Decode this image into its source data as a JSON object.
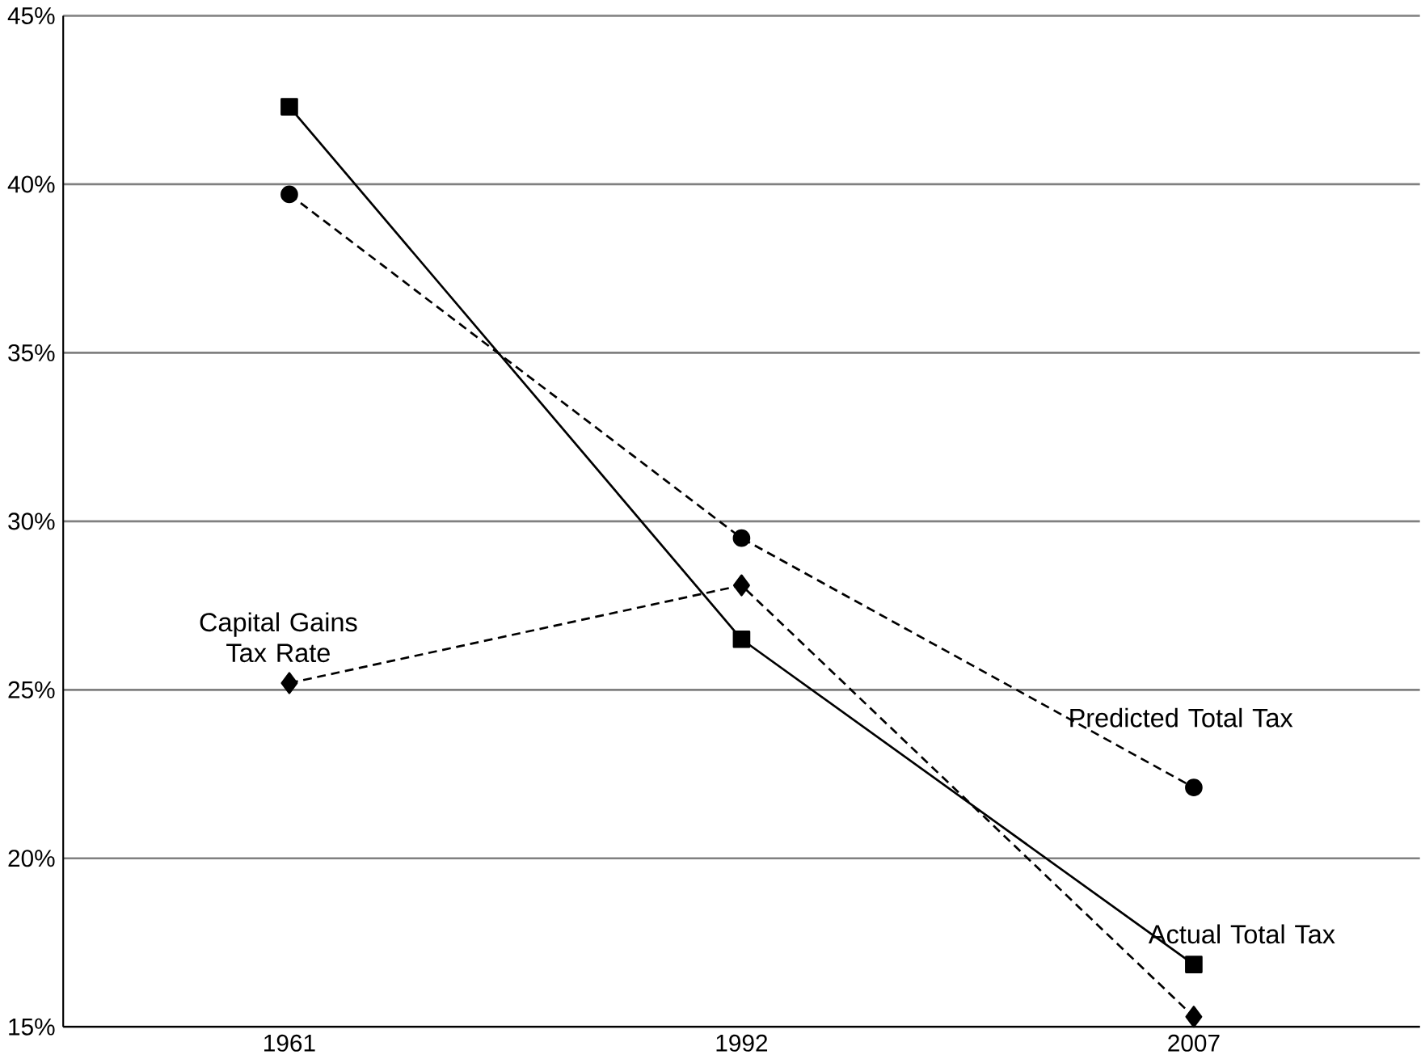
{
  "chart_data": {
    "type": "line",
    "categories": [
      "1961",
      "1992",
      "2007"
    ],
    "series": [
      {
        "name": "Actual Total Tax",
        "color": "#000000",
        "marker": "square",
        "line_style": "solid",
        "values": [
          42.3,
          26.5,
          16.85
        ]
      },
      {
        "name": "Predicted Total Tax",
        "color": "#000000",
        "marker": "circle",
        "line_style": "dashed",
        "values": [
          39.7,
          29.5,
          22.1
        ]
      },
      {
        "name": "Capital Gains Tax Rate",
        "color": "#000000",
        "marker": "diamond",
        "line_style": "dashed",
        "values": [
          25.2,
          28.1,
          15.3
        ]
      }
    ],
    "ylim": [
      15,
      45
    ],
    "yticks": [
      {
        "value": 15,
        "label": "15%"
      },
      {
        "value": 20,
        "label": "20%"
      },
      {
        "value": 25,
        "label": "25%"
      },
      {
        "value": 30,
        "label": "30%"
      },
      {
        "value": 35,
        "label": "35%"
      },
      {
        "value": 40,
        "label": "40%"
      },
      {
        "value": 45,
        "label": "45%"
      }
    ],
    "grid": "y"
  }
}
